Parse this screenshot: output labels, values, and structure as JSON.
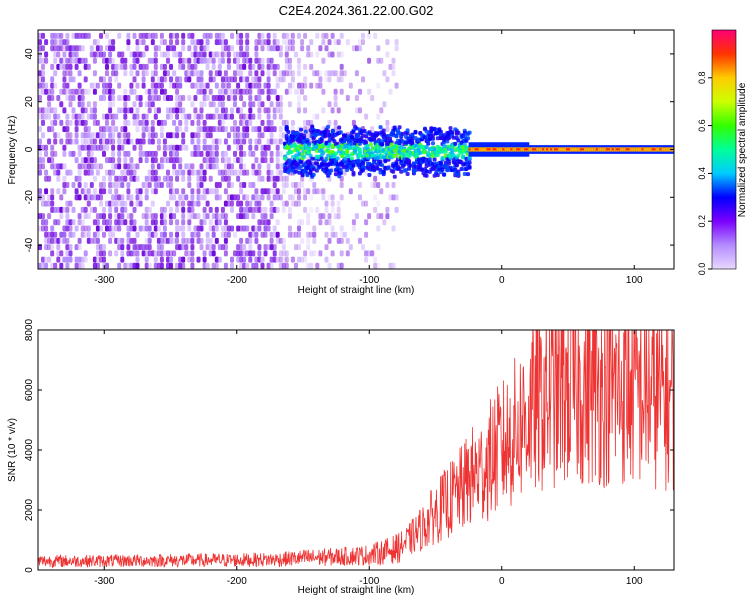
{
  "title": "C2E4.2024.361.22.00.G02",
  "chart_data": [
    {
      "type": "heatmap",
      "title": "C2E4.2024.361.22.00.G02",
      "xlabel": "Height of straight line (km)",
      "ylabel": "Frequency (Hz)",
      "xlim": [
        -350,
        130
      ],
      "ylim": [
        -50,
        50
      ],
      "x_ticks": [
        -300,
        -200,
        -100,
        0,
        100
      ],
      "x_tick_labels": [
        "-300",
        "-200",
        "-100",
        "0",
        "100"
      ],
      "y_ticks": [
        -40,
        -20,
        0,
        20,
        40
      ],
      "y_tick_labels": [
        "-40",
        "-20",
        "0",
        "20",
        "40"
      ],
      "colorbar": {
        "label": "Normalized spectral amplitude",
        "range": [
          0,
          1
        ],
        "ticks": [
          0.0,
          0.2,
          0.4,
          0.6,
          0.8
        ],
        "tick_labels": [
          "0.0",
          "0.2",
          "0.4",
          "0.6",
          "0.8"
        ]
      },
      "features": {
        "noise_region_km": [
          -350,
          -80
        ],
        "signal_onset_km": -165,
        "signal_center_hz": 0,
        "strong_line_start_km": -25,
        "strong_line_end_km": 130
      }
    },
    {
      "type": "line",
      "xlabel": "Height of straight line (km)",
      "ylabel": "SNR (10 * v/v)",
      "xlim": [
        -350,
        130
      ],
      "ylim": [
        0,
        8000
      ],
      "x_ticks": [
        -300,
        -200,
        -100,
        0,
        100
      ],
      "x_tick_labels": [
        "-300",
        "-200",
        "-100",
        "0",
        "100"
      ],
      "y_ticks": [
        0,
        2000,
        4000,
        6000,
        8000
      ],
      "y_tick_labels": [
        "0",
        "2000",
        "4000",
        "6000",
        "8000"
      ],
      "color": "#ee3333",
      "series": [
        {
          "name": "SNR",
          "x": [
            -350,
            -300,
            -250,
            -200,
            -170,
            -150,
            -120,
            -100,
            -80,
            -70,
            -60,
            -50,
            -40,
            -30,
            -25,
            -20,
            -15,
            -10,
            -5,
            0,
            5,
            10,
            15,
            20,
            30,
            40,
            50,
            60,
            70,
            80,
            90,
            100,
            110,
            120,
            130
          ],
          "y": [
            300,
            300,
            320,
            330,
            350,
            400,
            450,
            500,
            700,
            1000,
            1400,
            1900,
            2300,
            2700,
            3000,
            3200,
            3300,
            3600,
            3900,
            4100,
            4300,
            4600,
            4900,
            5200,
            5600,
            5900,
            6000,
            6000,
            6100,
            6000,
            6000,
            6000,
            5900,
            5800,
            5700
          ]
        }
      ]
    }
  ]
}
